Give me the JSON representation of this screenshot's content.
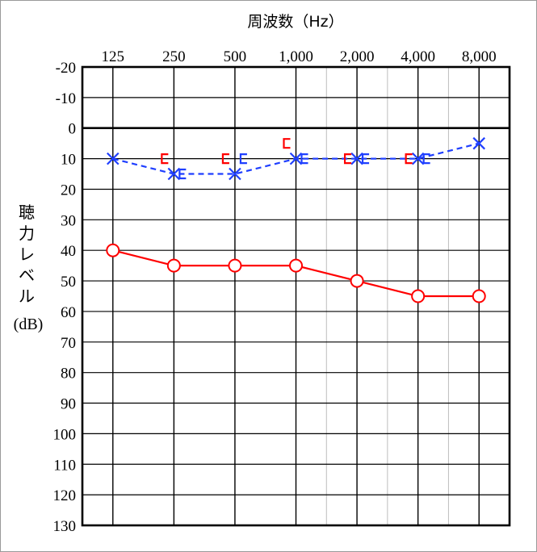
{
  "chart_data": {
    "type": "line",
    "title": "周波数（Hz）",
    "ylabel_chars": [
      "聴",
      "力",
      "レ",
      "ベ",
      "ル"
    ],
    "ylabel_unit": "(dB)",
    "x_categories": [
      "125",
      "250",
      "500",
      "1,000",
      "2,000",
      "4,000",
      "8,000"
    ],
    "y_ticks": [
      "-20",
      "-10",
      "0",
      "10",
      "20",
      "30",
      "40",
      "50",
      "60",
      "70",
      "80",
      "90",
      "100",
      "110",
      "120",
      "130"
    ],
    "ylim": [
      -20,
      130
    ],
    "y_inverted": true,
    "grid": true,
    "series": [
      {
        "marker": "circle",
        "color": "#ff0000",
        "line": "solid",
        "values": [
          40,
          45,
          45,
          45,
          50,
          55,
          55
        ]
      },
      {
        "marker": "cross",
        "color": "#1f3fff",
        "line": "dashed",
        "values": [
          10,
          15,
          15,
          10,
          10,
          10,
          5
        ]
      },
      {
        "marker": "bracket-right",
        "color": "#1f3fff",
        "line": "none",
        "categories": [
          "250",
          "500",
          "1,000",
          "2,000",
          "4,000"
        ],
        "values": [
          15,
          10,
          10,
          10,
          10
        ]
      },
      {
        "marker": "bracket-left",
        "color": "#ff0000",
        "line": "none",
        "categories": [
          "250",
          "500",
          "1,000",
          "2,000",
          "4,000"
        ],
        "values": [
          10,
          10,
          5,
          10,
          10
        ]
      }
    ]
  }
}
